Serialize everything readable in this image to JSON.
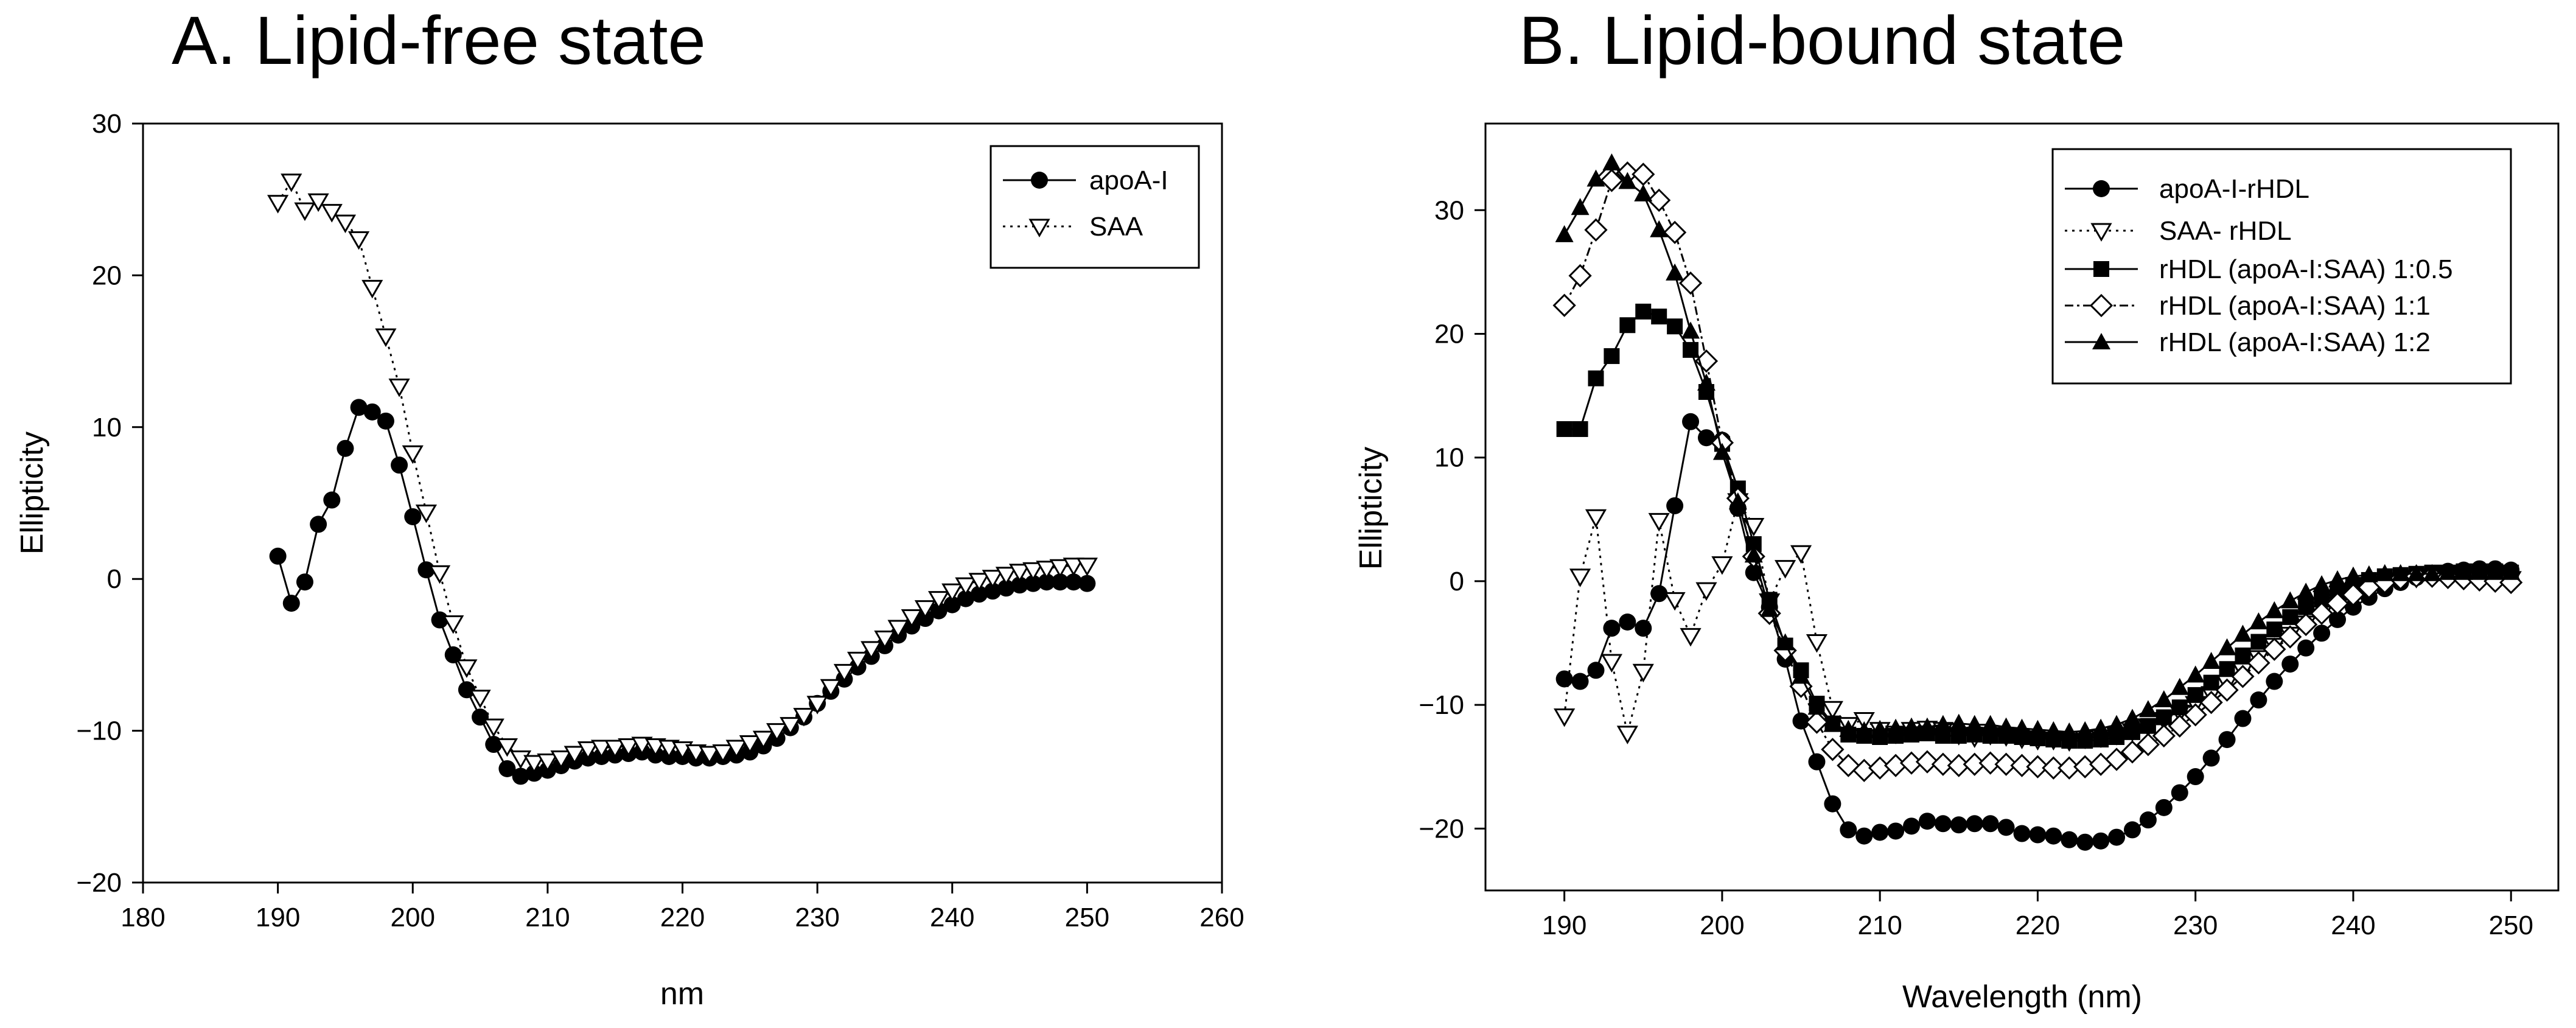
{
  "chart_data": [
    {
      "type": "line",
      "panel": "A",
      "title": "A. Lipid-free state",
      "xlabel": "nm",
      "ylabel": "Ellipticity",
      "xlim": [
        180,
        260
      ],
      "ylim": [
        -20,
        30
      ],
      "xticks": [
        180,
        190,
        200,
        210,
        220,
        230,
        240,
        250,
        260
      ],
      "yticks": [
        -20,
        -10,
        0,
        10,
        20,
        30
      ],
      "xtick_labels": [
        "180",
        "190",
        "200",
        "210",
        "220",
        "230",
        "240",
        "250",
        "260"
      ],
      "ytick_labels": [
        "−20",
        "−10",
        "0",
        "10",
        "20",
        "30"
      ],
      "legend_position": "top-right",
      "series": [
        {
          "name": "apoA-I",
          "marker": "filled-circle",
          "line": "solid",
          "x": [
            190,
            191,
            192,
            193,
            194,
            195,
            196,
            197,
            198,
            199,
            200,
            201,
            202,
            203,
            204,
            205,
            206,
            207,
            208,
            209,
            210,
            211,
            212,
            213,
            214,
            215,
            216,
            217,
            218,
            219,
            220,
            221,
            222,
            223,
            224,
            225,
            226,
            227,
            228,
            229,
            230,
            231,
            232,
            233,
            234,
            235,
            236,
            237,
            238,
            239,
            240,
            241,
            242,
            243,
            244,
            245,
            246,
            247,
            248,
            249,
            250
          ],
          "y": [
            1.5,
            -1.6,
            -0.2,
            3.6,
            5.2,
            8.6,
            11.3,
            11.0,
            10.4,
            7.5,
            4.1,
            0.6,
            -2.7,
            -5.0,
            -7.3,
            -9.1,
            -10.9,
            -12.5,
            -13.0,
            -12.8,
            -12.6,
            -12.3,
            -12.0,
            -11.8,
            -11.7,
            -11.6,
            -11.5,
            -11.4,
            -11.6,
            -11.7,
            -11.7,
            -11.8,
            -11.8,
            -11.7,
            -11.6,
            -11.4,
            -11.0,
            -10.5,
            -9.8,
            -9.1,
            -8.2,
            -7.4,
            -6.6,
            -5.8,
            -5.1,
            -4.4,
            -3.7,
            -3.1,
            -2.6,
            -2.1,
            -1.7,
            -1.3,
            -1.0,
            -0.8,
            -0.6,
            -0.4,
            -0.3,
            -0.2,
            -0.2,
            -0.2,
            -0.3
          ]
        },
        {
          "name": "SAA",
          "marker": "open-triangle-down",
          "line": "dotted",
          "x": [
            190,
            191,
            192,
            193,
            194,
            195,
            196,
            197,
            198,
            199,
            200,
            201,
            202,
            203,
            204,
            205,
            206,
            207,
            208,
            209,
            210,
            211,
            212,
            213,
            214,
            215,
            216,
            217,
            218,
            219,
            220,
            221,
            222,
            223,
            224,
            225,
            226,
            227,
            228,
            229,
            230,
            231,
            232,
            233,
            234,
            235,
            236,
            237,
            238,
            239,
            240,
            241,
            242,
            243,
            244,
            245,
            246,
            247,
            248,
            249,
            250
          ],
          "y": [
            24.8,
            26.2,
            24.3,
            24.9,
            24.2,
            23.5,
            22.4,
            19.2,
            16.0,
            12.7,
            8.3,
            4.4,
            0.4,
            -2.9,
            -5.8,
            -7.8,
            -9.7,
            -11.0,
            -11.8,
            -12.1,
            -12.0,
            -11.8,
            -11.5,
            -11.2,
            -11.1,
            -11.1,
            -11.0,
            -10.9,
            -11.0,
            -11.1,
            -11.2,
            -11.4,
            -11.5,
            -11.4,
            -11.1,
            -10.8,
            -10.5,
            -10.0,
            -9.6,
            -9.0,
            -8.2,
            -7.1,
            -6.1,
            -5.3,
            -4.6,
            -3.9,
            -3.2,
            -2.5,
            -1.9,
            -1.3,
            -0.8,
            -0.4,
            -0.1,
            0.1,
            0.3,
            0.5,
            0.6,
            0.7,
            0.8,
            0.9,
            0.9
          ]
        }
      ]
    },
    {
      "type": "line",
      "panel": "B",
      "title": "B. Lipid-bound state",
      "xlabel": "Wavelength (nm)",
      "ylabel": "Ellipticity",
      "xlim": [
        185,
        253
      ],
      "ylim": [
        -25,
        37
      ],
      "xticks": [
        190,
        200,
        210,
        220,
        230,
        240,
        250
      ],
      "yticks": [
        -20,
        -10,
        0,
        10,
        20,
        30
      ],
      "xtick_labels": [
        "190",
        "200",
        "210",
        "220",
        "230",
        "240",
        "250"
      ],
      "ytick_labels": [
        "−20",
        "−10",
        "0",
        "10",
        "20",
        "30"
      ],
      "legend_position": "top-right",
      "series": [
        {
          "name": "apoA-I-rHDL",
          "marker": "filled-circle",
          "line": "solid",
          "x": [
            190,
            191,
            192,
            193,
            194,
            195,
            196,
            197,
            198,
            199,
            200,
            201,
            202,
            203,
            204,
            205,
            206,
            207,
            208,
            209,
            210,
            211,
            212,
            213,
            214,
            215,
            216,
            217,
            218,
            219,
            220,
            221,
            222,
            223,
            224,
            225,
            226,
            227,
            228,
            229,
            230,
            231,
            232,
            233,
            234,
            235,
            236,
            237,
            238,
            239,
            240,
            241,
            242,
            243,
            244,
            245,
            246,
            247,
            248,
            249,
            250
          ],
          "y": [
            -7.9,
            -8.1,
            -7.2,
            -3.8,
            -3.3,
            -3.8,
            -1.0,
            6.1,
            12.9,
            11.6,
            11.4,
            5.9,
            0.7,
            -2.1,
            -6.3,
            -11.3,
            -14.6,
            -18.0,
            -20.1,
            -20.6,
            -20.3,
            -20.2,
            -19.8,
            -19.4,
            -19.6,
            -19.7,
            -19.6,
            -19.6,
            -19.9,
            -20.4,
            -20.5,
            -20.6,
            -20.9,
            -21.1,
            -21.0,
            -20.7,
            -20.1,
            -19.3,
            -18.3,
            -17.1,
            -15.8,
            -14.3,
            -12.8,
            -11.1,
            -9.6,
            -8.1,
            -6.7,
            -5.4,
            -4.2,
            -3.1,
            -2.1,
            -1.3,
            -0.6,
            -0.1,
            0.3,
            0.6,
            0.8,
            0.9,
            1.0,
            1.0,
            0.9
          ]
        },
        {
          "name": "SAA- rHDL",
          "marker": "open-triangle-down",
          "line": "dotted",
          "x": [
            190,
            191,
            192,
            193,
            194,
            195,
            196,
            197,
            198,
            199,
            200,
            201,
            202,
            203,
            204,
            205,
            206,
            207,
            208,
            209,
            210,
            211,
            212,
            213,
            214,
            215,
            216,
            217,
            218,
            219,
            220,
            221,
            222,
            223,
            224,
            225,
            226,
            227,
            228,
            229,
            230,
            231,
            232,
            233,
            234,
            235,
            236,
            237,
            238,
            239,
            240,
            241,
            242,
            243,
            244,
            245,
            246,
            247,
            248,
            249,
            250
          ],
          "y": [
            -10.9,
            0.4,
            5.2,
            -6.5,
            -12.3,
            -7.3,
            4.9,
            -1.5,
            -4.4,
            -0.7,
            1.4,
            6.5,
            4.5,
            -1.6,
            1.1,
            2.3,
            -4.9,
            -10.3,
            -11.6,
            -11.2,
            -12.0,
            -12.3,
            -12.0,
            -11.9,
            -12.0,
            -12.4,
            -12.6,
            -12.4,
            -12.5,
            -12.7,
            -12.8,
            -12.8,
            -12.9,
            -12.7,
            -12.6,
            -12.4,
            -12.1,
            -11.7,
            -11.2,
            -10.6,
            -9.9,
            -9.1,
            -8.2,
            -7.2,
            -6.2,
            -5.2,
            -4.3,
            -3.4,
            -2.6,
            -1.9,
            -1.2,
            -0.7,
            -0.2,
            0.1,
            0.3,
            0.4,
            0.5,
            0.5,
            0.4,
            0.3,
            0.2
          ]
        },
        {
          "name": "rHDL (apoA-I:SAA) 1:0.5",
          "marker": "filled-square",
          "line": "solid",
          "x": [
            190,
            191,
            192,
            193,
            194,
            195,
            196,
            197,
            198,
            199,
            200,
            201,
            202,
            203,
            204,
            205,
            206,
            207,
            208,
            209,
            210,
            211,
            212,
            213,
            214,
            215,
            216,
            217,
            218,
            219,
            220,
            221,
            222,
            223,
            224,
            225,
            226,
            227,
            228,
            229,
            230,
            231,
            232,
            233,
            234,
            235,
            236,
            237,
            238,
            239,
            240,
            241,
            242,
            243,
            244,
            245,
            246,
            247,
            248,
            249,
            250
          ],
          "y": [
            12.3,
            12.3,
            16.4,
            18.2,
            20.7,
            21.8,
            21.4,
            20.6,
            18.7,
            15.3,
            11.1,
            7.5,
            3.0,
            -1.5,
            -5.2,
            -7.2,
            -9.9,
            -11.5,
            -12.4,
            -12.5,
            -12.6,
            -12.5,
            -12.4,
            -12.3,
            -12.5,
            -12.5,
            -12.4,
            -12.5,
            -12.5,
            -12.6,
            -12.7,
            -12.8,
            -12.9,
            -12.9,
            -12.8,
            -12.6,
            -12.2,
            -11.7,
            -11.0,
            -10.2,
            -9.2,
            -8.2,
            -7.1,
            -6.0,
            -4.9,
            -3.9,
            -2.9,
            -2.1,
            -1.4,
            -0.8,
            -0.3,
            0.1,
            0.4,
            0.5,
            0.6,
            0.7,
            0.7,
            0.8,
            0.8,
            0.8,
            0.7
          ]
        },
        {
          "name": "rHDL (apoA-I:SAA) 1:1",
          "marker": "open-diamond",
          "line": "dash-dot",
          "x": [
            190,
            191,
            192,
            193,
            194,
            195,
            196,
            197,
            198,
            199,
            200,
            201,
            202,
            203,
            204,
            205,
            206,
            207,
            208,
            209,
            210,
            211,
            212,
            213,
            214,
            215,
            216,
            217,
            218,
            219,
            220,
            221,
            222,
            223,
            224,
            225,
            226,
            227,
            228,
            229,
            230,
            231,
            232,
            233,
            234,
            235,
            236,
            237,
            238,
            239,
            240,
            241,
            242,
            243,
            244,
            245,
            246,
            247,
            248,
            249,
            250
          ],
          "y": [
            22.3,
            24.7,
            28.4,
            32.4,
            33.0,
            32.9,
            30.8,
            28.2,
            24.1,
            17.8,
            11.2,
            6.7,
            2.0,
            -2.6,
            -5.6,
            -8.5,
            -11.4,
            -13.6,
            -14.9,
            -15.3,
            -15.1,
            -14.9,
            -14.7,
            -14.6,
            -14.8,
            -14.9,
            -14.8,
            -14.7,
            -14.8,
            -14.9,
            -15.0,
            -15.1,
            -15.1,
            -15.0,
            -14.8,
            -14.4,
            -13.8,
            -13.2,
            -12.5,
            -11.7,
            -10.8,
            -9.8,
            -8.8,
            -7.7,
            -6.6,
            -5.5,
            -4.5,
            -3.5,
            -2.6,
            -1.8,
            -1.1,
            -0.5,
            -0.1,
            0.2,
            0.4,
            0.4,
            0.3,
            0.2,
            0.1,
            0.0,
            -0.1
          ]
        },
        {
          "name": "rHDL (apoA-I:SAA) 1:2",
          "marker": "filled-triangle-up",
          "line": "solid",
          "x": [
            190,
            191,
            192,
            193,
            194,
            195,
            196,
            197,
            198,
            199,
            200,
            201,
            202,
            203,
            204,
            205,
            206,
            207,
            208,
            209,
            210,
            211,
            212,
            213,
            214,
            215,
            216,
            217,
            218,
            219,
            220,
            221,
            222,
            223,
            224,
            225,
            226,
            227,
            228,
            229,
            230,
            231,
            232,
            233,
            234,
            235,
            236,
            237,
            238,
            239,
            240,
            241,
            242,
            243,
            244,
            245,
            246,
            247,
            248,
            249,
            250
          ],
          "y": [
            28.0,
            30.2,
            32.5,
            33.8,
            32.3,
            31.3,
            28.4,
            24.9,
            20.2,
            16.0,
            10.4,
            6.4,
            2.1,
            -2.3,
            -5.0,
            -7.7,
            -10.2,
            -11.6,
            -12.0,
            -12.1,
            -12.0,
            -11.9,
            -11.8,
            -11.8,
            -11.6,
            -11.5,
            -11.6,
            -11.6,
            -11.8,
            -11.9,
            -12.0,
            -12.1,
            -12.2,
            -12.1,
            -11.9,
            -11.6,
            -11.1,
            -10.4,
            -9.6,
            -8.6,
            -7.6,
            -6.5,
            -5.4,
            -4.3,
            -3.3,
            -2.4,
            -1.6,
            -0.9,
            -0.3,
            0.1,
            0.4,
            0.5,
            0.6,
            0.6,
            0.6,
            0.6,
            0.7,
            0.7,
            0.7,
            0.7,
            0.7
          ]
        }
      ]
    }
  ]
}
